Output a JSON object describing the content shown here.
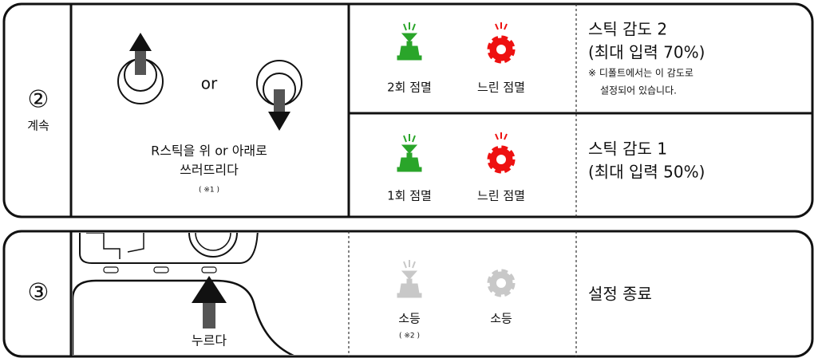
{
  "steps": [
    {
      "number": "②",
      "label": "계속",
      "action": [
        "R스틱을 위 or 아래로",
        "쓰러뜨리다"
      ],
      "action_note": "( ※1 )",
      "or": "or",
      "rows": [
        {
          "indicators": [
            "2회 점멸",
            "느린 점멸"
          ],
          "description": [
            "스틱 감도 2",
            "(최대 입력 70%)"
          ],
          "note": [
            "※ 디폴트에서는 이 감도로",
            "설정되어 있습니다."
          ]
        },
        {
          "indicators": [
            "1회 점멸",
            "느린 점멸"
          ],
          "description": [
            "스틱 감도 1",
            "(최대 입력 50%)"
          ]
        }
      ]
    },
    {
      "number": "③",
      "action": [
        "누르다"
      ],
      "rows": [
        {
          "indicators": [
            "소등",
            "소등"
          ],
          "indicator_note": "( ※2 )",
          "description": [
            "설정 종료"
          ]
        }
      ]
    }
  ]
}
